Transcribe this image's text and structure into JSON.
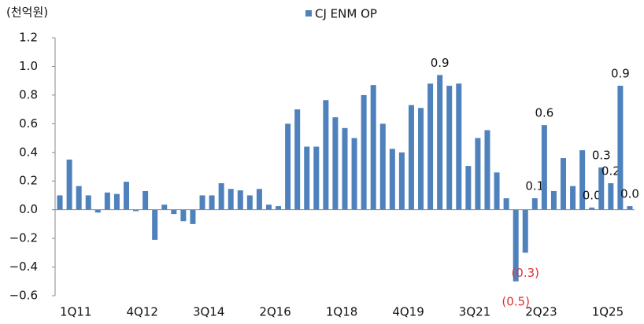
{
  "chart_data": {
    "type": "bar",
    "unit_label": "(천억원)",
    "categories": [
      "1Q11",
      null,
      null,
      null,
      null,
      null,
      null,
      "4Q12",
      null,
      null,
      null,
      null,
      null,
      null,
      "3Q14",
      null,
      null,
      null,
      null,
      null,
      null,
      "2Q16",
      null,
      null,
      null,
      null,
      null,
      null,
      "1Q18",
      null,
      null,
      null,
      null,
      null,
      null,
      "4Q19",
      null,
      null,
      null,
      null,
      null,
      null,
      "3Q21",
      null,
      null,
      null,
      null,
      null,
      null,
      "2Q23",
      null,
      null,
      null,
      null,
      null,
      null,
      "1Q25",
      null,
      null,
      null,
      null
    ],
    "series": [
      {
        "name": "CJ ENM OP",
        "color": "#4f81bd",
        "values": [
          0.1,
          0.35,
          0.165,
          0.1,
          -0.02,
          0.12,
          0.11,
          0.195,
          -0.01,
          0.13,
          -0.21,
          0.035,
          -0.03,
          -0.08,
          -0.1,
          0.1,
          0.1,
          0.185,
          0.145,
          0.135,
          0.1,
          0.145,
          0.035,
          0.025,
          0.6,
          0.7,
          0.44,
          0.44,
          0.765,
          0.645,
          0.57,
          0.5,
          0.8,
          0.87,
          0.6,
          0.425,
          0.4,
          0.73,
          0.71,
          0.88,
          0.94,
          0.865,
          0.88,
          0.305,
          0.5,
          0.555,
          0.26,
          0.08,
          -0.5,
          -0.3,
          0.08,
          0.59,
          0.13,
          0.36,
          0.165,
          0.415,
          0.015,
          0.295,
          0.185,
          0.865,
          0.025
        ],
        "value_labels": [
          null,
          null,
          null,
          null,
          null,
          null,
          null,
          null,
          null,
          null,
          null,
          null,
          null,
          null,
          null,
          null,
          null,
          null,
          null,
          null,
          null,
          null,
          null,
          null,
          null,
          null,
          null,
          null,
          null,
          null,
          null,
          null,
          null,
          null,
          null,
          null,
          null,
          null,
          null,
          null,
          "0.9",
          null,
          null,
          null,
          null,
          null,
          null,
          null,
          "(0.5)",
          "(0.3)",
          "0.1",
          "0.6",
          null,
          null,
          null,
          null,
          "0.0",
          "0.3",
          "0.2",
          "0.9",
          "0.0"
        ]
      }
    ],
    "negative_label_color": "#e03030",
    "ylim": [
      -0.6,
      1.2
    ],
    "yticks": [
      {
        "value": -0.6,
        "label": "−0.6"
      },
      {
        "value": -0.4,
        "label": "−0.4"
      },
      {
        "value": -0.2,
        "label": "−0.2"
      },
      {
        "value": 0,
        "label": "0.0"
      },
      {
        "value": 0.2,
        "label": "0.2"
      },
      {
        "value": 0.4,
        "label": "0.4"
      },
      {
        "value": 0.6,
        "label": "0.6"
      },
      {
        "value": 0.8,
        "label": "0.8"
      },
      {
        "value": 1.0,
        "label": "1.0"
      },
      {
        "value": 1.2,
        "label": "1.2"
      }
    ],
    "legend": "top"
  }
}
